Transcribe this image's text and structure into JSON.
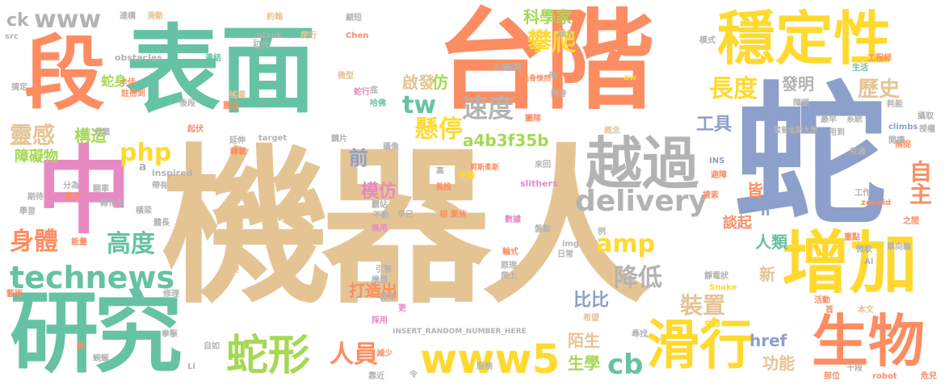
{
  "colors": {
    "green": "#66c2a5",
    "orange": "#fc8d62",
    "blue": "#8da0cb",
    "pink": "#e78ac3",
    "lime": "#a6d854",
    "yellow": "#ffd92f",
    "tan": "#e5c494",
    "gray": "#b3b3b3"
  },
  "words": {
    "w01": "機器人",
    "w02": "蛇",
    "w03": "台階",
    "w04": "表面",
    "w05": "段",
    "w06": "中",
    "w07": "研究",
    "w08": "穩定性",
    "w09": "增加",
    "w10": "越過",
    "w11": "生物",
    "w12": "滑行",
    "w13": "www5",
    "w14": "www",
    "w15": "technews",
    "w16": "蛇形",
    "w17": "delivery",
    "w18": "攀爬",
    "w19": "長度",
    "w20": "自主",
    "w21": "速度",
    "w22": "懸停",
    "w23": "amp",
    "w24": "php",
    "w25": "tw",
    "w26": "高度",
    "w27": "身體",
    "w28": "靈感",
    "w29": "構造",
    "w30": "人員",
    "w31": "降低",
    "w32": "cb",
    "w33": "裝置",
    "w34": "歷史",
    "w35": "發明",
    "w36": "工具",
    "w37": "模仿",
    "w38": "前",
    "w39": "a4b3f35b",
    "w40": "啟發",
    "w41": "仿",
    "w42": "科學家",
    "w43": "蛇身",
    "w44": "障礙物",
    "w45": "打造出",
    "w46": "比比",
    "w47": "陌生",
    "w48": "生學",
    "w49": "功能",
    "w50": "href",
    "w51": "談起",
    "w52": "人類",
    "w53": "新",
    "w54": "皆",
    "w55": "n",
    "w56": "ck",
    "w57": "a",
    "w58": "slithers",
    "w59": "INSERT_RANDOM_NUMBER_HERE",
    "w60": "inspired",
    "w61": "obstacles",
    "w62": "target",
    "w63": "Chen",
    "w64": "INS",
    "w65": "zoneid",
    "w66": "climbs",
    "w67": "robot",
    "w68": "Snake",
    "w69": "src",
    "w70": "img",
    "w71": "Li",
    "w72": "AI",
    "w73": "_blank",
    "w74": "約翰",
    "w75": "卡佳",
    "w76": "工程師",
    "w77": "哈佛",
    "w78": "爬行",
    "w79": "大展",
    "w80": "毛骨悚然",
    "w81": "霍普金斯大學",
    "w82": "剪斯柔斯",
    "w83": "系統",
    "w84": "重點",
    "w85": "本文",
    "w86": "捕捉",
    "w87": "生活",
    "w88": "轉化率",
    "w89": "分為",
    "w90": "引擎",
    "w91": "原理",
    "w92": "機器",
    "w93": "日常",
    "w94": "採用",
    "w95": "早已",
    "w96": "希望",
    "w97": "來源",
    "w98": "搜索",
    "w99": "之間",
    "w100": "危兒",
    "w101": "十段",
    "w102": "部位",
    "w103": "活動",
    "w104": "圖片",
    "w105": "翻車",
    "w106": "期待",
    "w107": "學習",
    "w108": "能量",
    "w109": "藝術",
    "w110": "修理",
    "w111": "無用",
    "w112": "不動",
    "w113": "聚焦",
    "w114": "數據",
    "w115": "模式",
    "w116": "概念",
    "w117": "團隊",
    "w118": "最早",
    "w119": "用到",
    "w120": "耗能",
    "w121": "閱讀",
    "w122": "有趣",
    "w123": "避障",
    "w124": "工作",
    "w125": "單向輪",
    "w126": "微軟",
    "w127": "靜電狀",
    "w128": "首",
    "w129": "尋找",
    "w130": "變",
    "w131": "減少",
    "w132": "靠近",
    "w133": "令",
    "w134": "更",
    "w135": "自如",
    "w136": "耗",
    "w137": "蜿蜒",
    "w138": "拳擊",
    "w139": "帶有",
    "w140": "體長",
    "w141": "橫梁",
    "w142": "研發",
    "w143": "延伸",
    "w144": "轉載",
    "w145": "鏡片",
    "w146": "光滑",
    "w147": "長段",
    "w148": "高",
    "w149": "相",
    "w150": "服務",
    "w151": "盤點",
    "w152": "例",
    "w153": "攝取",
    "w154": "微型",
    "w155": "蛇行",
    "w156": "底",
    "w157": "霸站",
    "w158": "攝像",
    "w159": "連結",
    "w160": "靈活",
    "w161": "後段",
    "w162": "註冊到",
    "w163": "搞定",
    "w164": "分類",
    "w165": "起伏",
    "w166": "障礙",
    "w167": "授權",
    "w168": "時",
    "w169": "幅度",
    "w170": "輪式",
    "w171": "爬上",
    "w172": "轉身",
    "w173": "附身",
    "w174": "搖擺",
    "w175": "達構",
    "w176": "滑動",
    "w177": "顧短",
    "w178": "插入",
    "w179": "初代",
    "w180": "aw",
    "w181": "來回"
  }
}
